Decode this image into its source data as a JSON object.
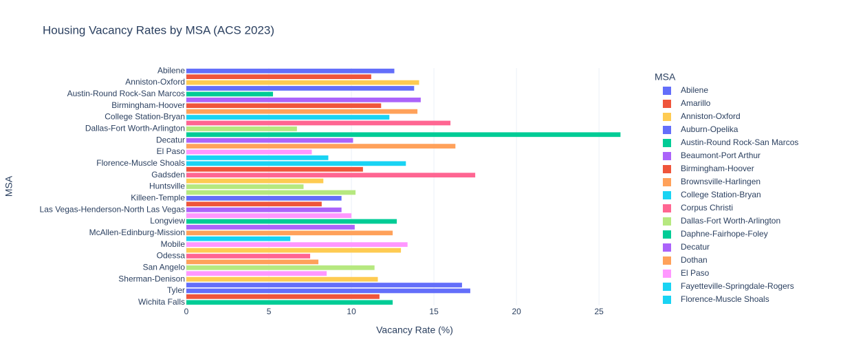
{
  "chart_data": {
    "type": "hbar",
    "title": "Housing Vacancy Rates by MSA (ACS 2023)",
    "x_label": "Vacancy Rate (%)",
    "y_label": "MSA",
    "categories": [
      "Abilene",
      null,
      "Anniston-Oxford",
      null,
      "Austin-Round Rock-San Marcos",
      null,
      "Birmingham-Hoover",
      null,
      "College Station-Bryan",
      null,
      "Dallas-Fort Worth-Arlington",
      null,
      "Decatur",
      null,
      "El Paso",
      null,
      "Florence-Muscle Shoals",
      null,
      "Gadsden",
      null,
      "Huntsville",
      null,
      "Killeen-Temple",
      null,
      "Las Vegas-Henderson-North Las Vegas",
      null,
      "Longview",
      null,
      "McAllen-Edinburg-Mission",
      null,
      "Mobile",
      null,
      "Odessa",
      null,
      "San Angelo",
      null,
      "Sherman-Denison",
      null,
      "Tyler",
      null,
      "Wichita Falls"
    ],
    "values": [
      12.6,
      11.2,
      14.1,
      13.8,
      5.25,
      14.2,
      11.8,
      14.0,
      12.3,
      16.0,
      6.7,
      26.3,
      10.1,
      16.3,
      7.6,
      8.6,
      13.3,
      10.7,
      17.5,
      8.3,
      7.1,
      10.25,
      9.4,
      8.2,
      9.4,
      10.0,
      12.75,
      10.2,
      12.5,
      6.3,
      13.4,
      13.0,
      7.5,
      8.0,
      11.4,
      8.5,
      11.6,
      16.7,
      17.2,
      11.7,
      12.5
    ],
    "colors": [
      "#636efa",
      "#EF553B",
      "#FECB52",
      "#636efa",
      "#00cc96",
      "#ab63fa",
      "#EF553B",
      "#FFA15A",
      "#19d3f3",
      "#FF6692",
      "#B6E880",
      "#00cc96",
      "#ab63fa",
      "#FFA15A",
      "#FF97FF",
      "#19d3f3",
      "#19d3f3",
      "#EF553B",
      "#FF6692",
      "#FECB52",
      "#B6E880",
      "#B6E880",
      "#636efa",
      "#EF553B",
      "#ab63fa",
      "#FF97FF",
      "#00cc96",
      "#ab63fa",
      "#FFA15A",
      "#19d3f3",
      "#FF97FF",
      "#FECB52",
      "#FF6692",
      "#FFA15A",
      "#B6E880",
      "#FF97FF",
      "#FECB52",
      "#636efa",
      "#636efa",
      "#EF553B",
      "#00cc96"
    ],
    "xlim": [
      0,
      27.7
    ],
    "xticks": [
      0,
      5,
      10,
      15,
      20,
      25
    ],
    "grid": true,
    "legend": {
      "title": "MSA",
      "position": "right",
      "entries": [
        {
          "name": "Abilene",
          "color": "#636efa"
        },
        {
          "name": "Amarillo",
          "color": "#EF553B"
        },
        {
          "name": "Anniston-Oxford",
          "color": "#FECB52"
        },
        {
          "name": "Auburn-Opelika",
          "color": "#636efa"
        },
        {
          "name": "Austin-Round Rock-San Marcos",
          "color": "#00cc96"
        },
        {
          "name": "Beaumont-Port Arthur",
          "color": "#ab63fa"
        },
        {
          "name": "Birmingham-Hoover",
          "color": "#EF553B"
        },
        {
          "name": "Brownsville-Harlingen",
          "color": "#FFA15A"
        },
        {
          "name": "College Station-Bryan",
          "color": "#19d3f3"
        },
        {
          "name": "Corpus Christi",
          "color": "#FF6692"
        },
        {
          "name": "Dallas-Fort Worth-Arlington",
          "color": "#B6E880"
        },
        {
          "name": "Daphne-Fairhope-Foley",
          "color": "#00cc96"
        },
        {
          "name": "Decatur",
          "color": "#ab63fa"
        },
        {
          "name": "Dothan",
          "color": "#FFA15A"
        },
        {
          "name": "El Paso",
          "color": "#FF97FF"
        },
        {
          "name": "Fayetteville-Springdale-Rogers",
          "color": "#19d3f3"
        },
        {
          "name": "Florence-Muscle Shoals",
          "color": "#19d3f3"
        }
      ]
    }
  }
}
